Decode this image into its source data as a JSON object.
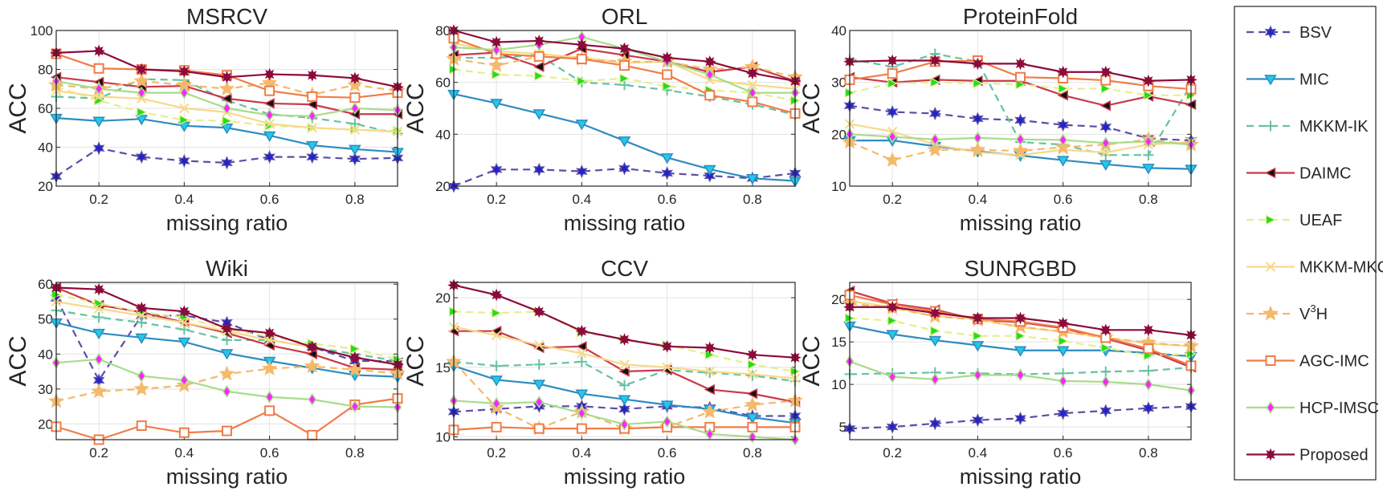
{
  "legend": {
    "placement": "right",
    "entries": [
      {
        "name": "BSV",
        "color": "#5a4fa6",
        "dash": true,
        "marker": "star6",
        "mfill": "#2222cc"
      },
      {
        "name": "MIC",
        "color": "#2e8bc0",
        "dash": false,
        "marker": "tridown",
        "mfill": "#22c8e8"
      },
      {
        "name": "MKKM-IK",
        "color": "#66c2a0",
        "dash": true,
        "marker": "plus",
        "mfill": "#66c2a0"
      },
      {
        "name": "DAIMC",
        "color": "#c93a4a",
        "dash": false,
        "marker": "trileft",
        "mfill": "#111111"
      },
      {
        "name": "UEAF",
        "color": "#e6ee8a",
        "dash": true,
        "marker": "triright",
        "mfill": "#22dd22"
      },
      {
        "name": "MKKM-MKC",
        "color": "#f6d98a",
        "dash": false,
        "marker": "x",
        "mfill": "#f6d98a"
      },
      {
        "name": "V",
        "sup": "3",
        "after": "H",
        "color": "#f4b96a",
        "dash": true,
        "marker": "star5",
        "mfill": "#f4b96a"
      },
      {
        "name": "AGC-IMC",
        "color": "#f07c48",
        "dash": false,
        "marker": "square",
        "mfill": "#ffffff"
      },
      {
        "name": "HCP-IMSC",
        "color": "#a8dc8a",
        "dash": false,
        "marker": "diamond",
        "mfill": "#ff22ff"
      },
      {
        "name": "Proposed",
        "color": "#8c0a3c",
        "dash": false,
        "marker": "star8",
        "mfill": "#8c0a3c"
      }
    ]
  },
  "chart_data": [
    {
      "type": "line",
      "title": "MSRCV",
      "xlabel": "missing ratio",
      "ylabel": "ACC",
      "xlim": [
        0.1,
        0.9
      ],
      "ylim": [
        20,
        100
      ],
      "yticks": [
        20,
        40,
        60,
        80,
        100
      ],
      "xticks": [
        0.2,
        0.4,
        0.6,
        0.8
      ],
      "grid": true,
      "x": [
        0.1,
        0.2,
        0.3,
        0.4,
        0.5,
        0.6,
        0.7,
        0.8,
        0.9
      ],
      "series": [
        {
          "name": "BSV",
          "values": [
            25,
            39.5,
            35,
            33,
            32,
            35,
            35,
            34,
            34.5
          ]
        },
        {
          "name": "MIC",
          "values": [
            55,
            53.5,
            54.5,
            51,
            50,
            46,
            41,
            39,
            37.5
          ]
        },
        {
          "name": "MKKM-IK",
          "values": [
            66,
            65,
            75,
            74.5,
            64,
            57,
            55,
            52,
            47
          ]
        },
        {
          "name": "DAIMC",
          "values": [
            76,
            73.5,
            71,
            71.5,
            65,
            62.5,
            62,
            57,
            57
          ]
        },
        {
          "name": "UEAF",
          "values": [
            71,
            64,
            58,
            54,
            53.5,
            51,
            50,
            49,
            48.5
          ]
        },
        {
          "name": "MKKM-MKC",
          "values": [
            69,
            66,
            65,
            60,
            58,
            52,
            50,
            49,
            48
          ]
        },
        {
          "name": "V3H",
          "values": [
            72,
            70,
            74,
            72,
            70,
            73,
            67,
            72,
            69
          ]
        },
        {
          "name": "AGC-IMC",
          "values": [
            88,
            80.5,
            80,
            79.5,
            77,
            69,
            66,
            65.5,
            68
          ]
        },
        {
          "name": "HCP-IMSC",
          "values": [
            74,
            70,
            68,
            68,
            60,
            56.5,
            56,
            60,
            59
          ]
        },
        {
          "name": "Proposed",
          "values": [
            88.5,
            89.5,
            80,
            79,
            76,
            77.5,
            77,
            75.5,
            71
          ]
        }
      ]
    },
    {
      "type": "line",
      "title": "ORL",
      "xlabel": "missing ratio",
      "ylabel": "ACC",
      "xlim": [
        0.1,
        0.9
      ],
      "ylim": [
        20,
        80
      ],
      "yticks": [
        20,
        40,
        60,
        80
      ],
      "xticks": [
        0.2,
        0.4,
        0.6,
        0.8
      ],
      "grid": true,
      "x": [
        0.1,
        0.2,
        0.3,
        0.4,
        0.5,
        0.6,
        0.7,
        0.8,
        0.9
      ],
      "series": [
        {
          "name": "BSV",
          "values": [
            20,
            26.4,
            26.4,
            25.7,
            26.8,
            25,
            24,
            23,
            25
          ]
        },
        {
          "name": "MIC",
          "values": [
            55.5,
            52,
            48,
            44,
            37.5,
            31,
            26.5,
            23,
            22
          ]
        },
        {
          "name": "MKKM-IK",
          "values": [
            69.5,
            69.5,
            70.5,
            60,
            59,
            57,
            54.5,
            51.5,
            47.5
          ]
        },
        {
          "name": "DAIMC",
          "values": [
            70.5,
            71.5,
            66,
            73,
            70.5,
            68,
            64,
            66,
            60.5
          ]
        },
        {
          "name": "UEAF",
          "values": [
            65,
            63,
            62.5,
            60.5,
            61.5,
            58.5,
            57,
            56,
            53
          ]
        },
        {
          "name": "MKKM-MKC",
          "values": [
            75,
            72,
            71,
            69.5,
            67.5,
            68,
            61,
            59,
            57.5
          ]
        },
        {
          "name": "V3H",
          "values": [
            69,
            66.5,
            70,
            69,
            68,
            68,
            65,
            66,
            62
          ]
        },
        {
          "name": "AGC-IMC",
          "values": [
            77,
            71,
            70,
            69,
            66.5,
            63,
            55,
            52.5,
            48
          ]
        },
        {
          "name": "HCP-IMSC",
          "values": [
            73.5,
            72.5,
            74.5,
            77.5,
            73,
            68,
            63,
            56,
            56
          ]
        },
        {
          "name": "Proposed",
          "values": [
            80,
            75.5,
            76,
            74.5,
            73,
            69.5,
            68,
            63.5,
            60.5
          ]
        }
      ]
    },
    {
      "type": "line",
      "title": "ProteinFold",
      "xlabel": "missing ratio",
      "ylabel": "ACC",
      "xlim": [
        0.1,
        0.9
      ],
      "ylim": [
        10,
        40
      ],
      "yticks": [
        10,
        20,
        30,
        40
      ],
      "xticks": [
        0.2,
        0.4,
        0.6,
        0.8
      ],
      "grid": true,
      "x": [
        0.1,
        0.2,
        0.3,
        0.4,
        0.5,
        0.6,
        0.7,
        0.8,
        0.9
      ],
      "series": [
        {
          "name": "BSV",
          "values": [
            25.5,
            24.3,
            24,
            23,
            22.7,
            21.8,
            21.4,
            19.2,
            18.8
          ]
        },
        {
          "name": "MIC",
          "values": [
            18.8,
            18.8,
            17.7,
            16.7,
            15.9,
            15,
            14.2,
            13.5,
            13.3
          ]
        },
        {
          "name": "MKKM-IK",
          "values": [
            34.5,
            33,
            35.5,
            34,
            18.5,
            18,
            16,
            16,
            29.5
          ]
        },
        {
          "name": "DAIMC",
          "values": [
            31,
            30,
            30.5,
            30.3,
            30.3,
            27.5,
            25.5,
            27.3,
            25.7
          ]
        },
        {
          "name": "UEAF",
          "values": [
            28,
            29.8,
            30,
            29.8,
            29.6,
            28.8,
            28.8,
            27.5,
            27.5
          ]
        },
        {
          "name": "MKKM-MKC",
          "values": [
            22,
            20.5,
            18,
            16.5,
            16,
            17,
            16.5,
            18,
            18.5
          ]
        },
        {
          "name": "V3H",
          "values": [
            18.5,
            15,
            17,
            17,
            16.8,
            17.5,
            18,
            19,
            18
          ]
        },
        {
          "name": "AGC-IMC",
          "values": [
            30.5,
            31.7,
            34,
            34.2,
            31,
            30.8,
            30.4,
            29.3,
            28.7
          ]
        },
        {
          "name": "HCP-IMSC",
          "values": [
            20,
            19.5,
            19,
            19.3,
            19,
            18.9,
            18.3,
            18.6,
            18
          ]
        },
        {
          "name": "Proposed",
          "values": [
            34,
            34.2,
            34.2,
            33.6,
            33.6,
            32,
            32,
            30.3,
            30.5
          ]
        }
      ]
    },
    {
      "type": "line",
      "title": "Wiki",
      "xlabel": "missing ratio",
      "ylabel": "ACC",
      "xlim": [
        0.1,
        0.9
      ],
      "ylim": [
        15.5,
        60.5
      ],
      "yticks": [
        20,
        30,
        40,
        50,
        60
      ],
      "xticks": [
        0.2,
        0.4,
        0.6,
        0.8
      ],
      "grid": true,
      "x": [
        0.1,
        0.2,
        0.3,
        0.4,
        0.5,
        0.6,
        0.7,
        0.8,
        0.9
      ],
      "series": [
        {
          "name": "BSV",
          "values": [
            56,
            32.5,
            51,
            51,
            49,
            44,
            42,
            38,
            38
          ]
        },
        {
          "name": "MIC",
          "values": [
            49,
            46,
            44.7,
            43.5,
            40.2,
            38,
            36,
            34,
            33.5
          ]
        },
        {
          "name": "MKKM-IK",
          "values": [
            52.5,
            50.5,
            49,
            47,
            44,
            44,
            42,
            40,
            38
          ]
        },
        {
          "name": "DAIMC",
          "values": [
            59,
            54,
            52,
            49,
            46,
            42.5,
            40,
            36,
            35.5
          ]
        },
        {
          "name": "UEAF",
          "values": [
            57,
            54.5,
            52,
            50.5,
            47,
            45,
            43,
            41.5,
            38.5
          ]
        },
        {
          "name": "MKKM-MKC",
          "values": [
            55,
            53,
            51,
            49,
            46.5,
            44,
            42,
            39,
            37
          ]
        },
        {
          "name": "V3H",
          "values": [
            26.5,
            29.3,
            30,
            31,
            34.3,
            35.8,
            36.5,
            35.5,
            34.5
          ]
        },
        {
          "name": "AGC-IMC",
          "values": [
            19.2,
            15.5,
            19.5,
            17.5,
            18,
            23.8,
            16.8,
            25.5,
            27.3
          ]
        },
        {
          "name": "HCP-IMSC",
          "values": [
            37.5,
            38.5,
            33.7,
            32.5,
            29.3,
            27.7,
            27,
            25,
            24.8
          ]
        },
        {
          "name": "Proposed",
          "values": [
            59,
            58.5,
            53.2,
            52.2,
            47.3,
            46,
            42,
            39,
            37
          ]
        }
      ]
    },
    {
      "type": "line",
      "title": "CCV",
      "xlabel": "missing ratio",
      "ylabel": "ACC",
      "xlim": [
        0.1,
        0.9
      ],
      "ylim": [
        9.8,
        21.1
      ],
      "yticks": [
        10,
        15,
        20
      ],
      "xticks": [
        0.2,
        0.4,
        0.6,
        0.8
      ],
      "grid": true,
      "x": [
        0.1,
        0.2,
        0.3,
        0.4,
        0.5,
        0.6,
        0.7,
        0.8,
        0.9
      ],
      "series": [
        {
          "name": "BSV",
          "values": [
            11.8,
            12,
            12.2,
            12.2,
            12,
            12.2,
            12.1,
            11.5,
            11.5
          ]
        },
        {
          "name": "MIC",
          "values": [
            15.1,
            14.1,
            13.8,
            13.1,
            12.7,
            12.3,
            12,
            11.4,
            11
          ]
        },
        {
          "name": "MKKM-IK",
          "values": [
            15.4,
            15.1,
            15.2,
            15.4,
            13.7,
            14.8,
            14.6,
            14.4,
            14
          ]
        },
        {
          "name": "DAIMC",
          "values": [
            17.6,
            17.6,
            16.4,
            16.5,
            14.7,
            14.8,
            13.4,
            13.1,
            12.5
          ]
        },
        {
          "name": "UEAF",
          "values": [
            19,
            18.9,
            19,
            17.5,
            17,
            16.6,
            15.9,
            15.2,
            14.7
          ]
        },
        {
          "name": "MKKM-MKC",
          "values": [
            17.9,
            17.3,
            16.6,
            16,
            15.2,
            15,
            14.7,
            14.5,
            14.2
          ]
        },
        {
          "name": "V3H",
          "values": [
            15.4,
            12.1,
            10.6,
            11.8,
            10.6,
            10.7,
            11.8,
            12.3,
            12.6
          ]
        },
        {
          "name": "AGC-IMC",
          "values": [
            10.5,
            10.7,
            10.6,
            10.6,
            10.6,
            10.7,
            10.7,
            10.7,
            10.7
          ]
        },
        {
          "name": "HCP-IMSC",
          "values": [
            12.6,
            12.4,
            12.5,
            11.7,
            10.9,
            11.1,
            10.2,
            10,
            9.8
          ]
        },
        {
          "name": "Proposed",
          "values": [
            20.9,
            20.2,
            19,
            17.6,
            17,
            16.5,
            16.4,
            15.9,
            15.7
          ]
        }
      ]
    },
    {
      "type": "line",
      "title": "SUNRGBD",
      "xlabel": "missing ratio",
      "ylabel": "ACC",
      "xlim": [
        0.1,
        0.9
      ],
      "ylim": [
        3.5,
        22
      ],
      "yticks": [
        5,
        10,
        15,
        20
      ],
      "xticks": [
        0.2,
        0.4,
        0.6,
        0.8
      ],
      "grid": true,
      "x": [
        0.1,
        0.2,
        0.3,
        0.4,
        0.5,
        0.6,
        0.7,
        0.8,
        0.9
      ],
      "series": [
        {
          "name": "BSV",
          "values": [
            4.8,
            5,
            5.4,
            5.8,
            6,
            6.6,
            6.9,
            7.2,
            7.4
          ]
        },
        {
          "name": "MIC",
          "values": [
            16.9,
            15.9,
            15.2,
            14.6,
            14,
            14,
            14,
            13.7,
            13.3
          ]
        },
        {
          "name": "MKKM-IK",
          "values": [
            11.2,
            11.3,
            11.4,
            11.3,
            11.2,
            11.3,
            11.5,
            11.6,
            12
          ]
        },
        {
          "name": "DAIMC",
          "values": [
            21,
            19.5,
            18.8,
            17.6,
            17.3,
            16.6,
            15.4,
            14,
            12
          ]
        },
        {
          "name": "UEAF",
          "values": [
            17.8,
            17.5,
            16.3,
            15.7,
            15.7,
            15.1,
            14.3,
            13.4,
            13.6
          ]
        },
        {
          "name": "MKKM-MKC",
          "values": [
            19.8,
            19.1,
            18,
            17.7,
            16.7,
            16.2,
            15.5,
            14.8,
            14.5
          ]
        },
        {
          "name": "V3H",
          "values": [
            19.5,
            19,
            18,
            17.6,
            16.8,
            16.2,
            15.5,
            14.9,
            14.5
          ]
        },
        {
          "name": "AGC-IMC",
          "values": [
            20.5,
            19.4,
            18.6,
            17.7,
            17.4,
            16.7,
            15.5,
            14.2,
            12.2
          ]
        },
        {
          "name": "HCP-IMSC",
          "values": [
            12.7,
            10.9,
            10.6,
            11.1,
            11.1,
            10.4,
            10.3,
            10,
            9.3
          ]
        },
        {
          "name": "Proposed",
          "values": [
            19.1,
            19.1,
            18.4,
            17.8,
            17.8,
            17.2,
            16.4,
            16.4,
            15.8
          ]
        }
      ]
    }
  ]
}
